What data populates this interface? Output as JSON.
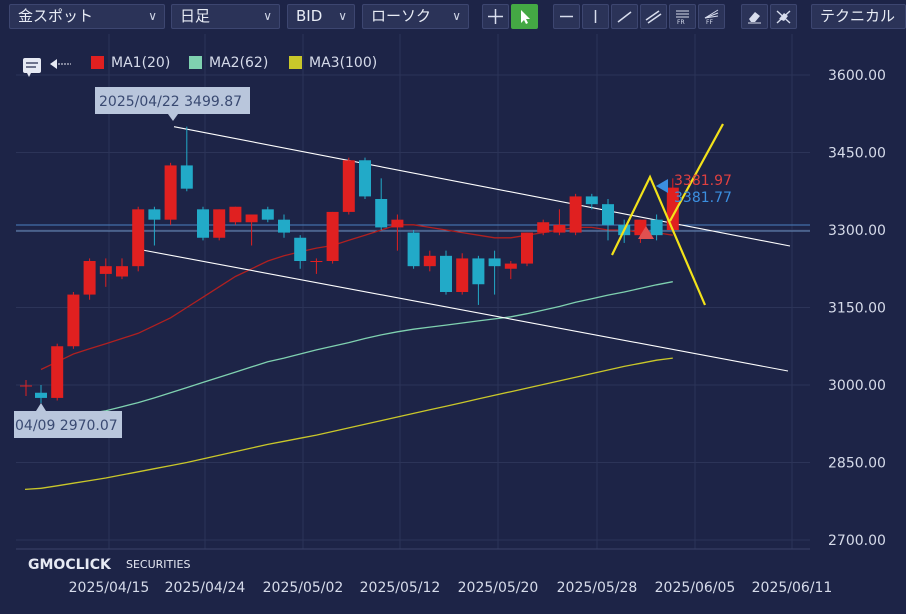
{
  "toolbar": {
    "symbol": "金スポット",
    "timeframe": "日足",
    "price_type": "BID",
    "chart_style": "ローソク",
    "technical_label": "テクニカル",
    "tools": [
      "crosshair-tool",
      "pointer-tool",
      "horizontal-line-tool",
      "vertical-line-tool",
      "trend-line-tool",
      "parallel-channel-tool",
      "fibonacci-retracement-tool",
      "fibonacci-fan-tool",
      "eraser-tool",
      "erase-all-tool"
    ],
    "fr_label": "FR",
    "ff_label": "FF"
  },
  "legend": {
    "items": [
      {
        "label": "MA1(20)",
        "color": "#e02020"
      },
      {
        "label": "MA2(62)",
        "color": "#7fd1b0"
      },
      {
        "label": "MA3(100)",
        "color": "#c9c72a"
      }
    ]
  },
  "brand": {
    "logo_text": "GMOCLICK",
    "logo_sub": "SECURITIES"
  },
  "annotations": {
    "high_label": "2025/04/22 3499.87",
    "low_label": "04/09 2970.07",
    "price_red": "3381.97",
    "price_blue": "3381.77"
  },
  "colors": {
    "background": "#1d2447",
    "up": "#e02020",
    "down": "#22aac8",
    "grid": "#2c3458",
    "axis_text": "#d6dbea"
  },
  "chart_data": {
    "type": "candlestick",
    "y_ticks": [
      "3600.00",
      "3450.00",
      "3300.00",
      "3150.00",
      "3000.00",
      "2850.00",
      "2700.00"
    ],
    "x_ticks": [
      "2025/04/15",
      "2025/04/24",
      "2025/05/02",
      "2025/05/12",
      "2025/05/20",
      "2025/05/28",
      "2025/06/05",
      "2025/06/11"
    ],
    "ylim": [
      2700,
      3600
    ],
    "candles": [
      [
        2985,
        3000,
        2965,
        2975
      ],
      [
        2975,
        3080,
        2970,
        3075
      ],
      [
        3075,
        3180,
        3070,
        3175
      ],
      [
        3175,
        3245,
        3165,
        3240
      ],
      [
        3215,
        3245,
        3190,
        3230
      ],
      [
        3210,
        3245,
        3205,
        3230
      ],
      [
        3230,
        3345,
        3220,
        3340
      ],
      [
        3340,
        3345,
        3270,
        3320
      ],
      [
        3320,
        3430,
        3310,
        3425
      ],
      [
        3425,
        3500,
        3375,
        3380
      ],
      [
        3340,
        3345,
        3280,
        3285
      ],
      [
        3285,
        3340,
        3280,
        3340
      ],
      [
        3315,
        3345,
        3310,
        3345
      ],
      [
        3315,
        3330,
        3270,
        3330
      ],
      [
        3340,
        3345,
        3315,
        3320
      ],
      [
        3320,
        3330,
        3285,
        3295
      ],
      [
        3285,
        3290,
        3225,
        3240
      ],
      [
        3240,
        3245,
        3215,
        3240
      ],
      [
        3240,
        3335,
        3235,
        3335
      ],
      [
        3335,
        3440,
        3330,
        3435
      ],
      [
        3435,
        3440,
        3360,
        3365
      ],
      [
        3360,
        3400,
        3300,
        3305
      ],
      [
        3305,
        3330,
        3260,
        3320
      ],
      [
        3295,
        3300,
        3225,
        3230
      ],
      [
        3230,
        3260,
        3220,
        3250
      ],
      [
        3250,
        3260,
        3175,
        3180
      ],
      [
        3180,
        3255,
        3175,
        3245
      ],
      [
        3245,
        3250,
        3155,
        3195
      ],
      [
        3245,
        3260,
        3175,
        3230
      ],
      [
        3225,
        3240,
        3205,
        3235
      ],
      [
        3235,
        3295,
        3230,
        3295
      ],
      [
        3295,
        3320,
        3290,
        3315
      ],
      [
        3295,
        3340,
        3290,
        3310
      ],
      [
        3295,
        3370,
        3290,
        3365
      ],
      [
        3365,
        3370,
        3340,
        3350
      ],
      [
        3350,
        3360,
        3280,
        3310
      ],
      [
        3310,
        3320,
        3275,
        3290
      ],
      [
        3290,
        3320,
        3275,
        3320
      ],
      [
        3320,
        3330,
        3280,
        3290
      ],
      [
        3300,
        3400,
        3295,
        3382
      ]
    ],
    "ma1": [
      3030,
      3045,
      3060,
      3070,
      3080,
      3090,
      3100,
      3115,
      3130,
      3150,
      3170,
      3190,
      3210,
      3225,
      3240,
      3250,
      3258,
      3265,
      3270,
      3280,
      3290,
      3300,
      3310,
      3310,
      3305,
      3300,
      3295,
      3290,
      3285,
      3285,
      3290,
      3295,
      3300,
      3305,
      3305,
      3300,
      3300,
      3295,
      3295,
      3290
    ],
    "ma2": [
      2930,
      2935,
      2940,
      2945,
      2950,
      2958,
      2966,
      2975,
      2985,
      2995,
      3005,
      3015,
      3025,
      3035,
      3045,
      3052,
      3060,
      3068,
      3075,
      3082,
      3090,
      3097,
      3103,
      3108,
      3112,
      3116,
      3120,
      3124,
      3128,
      3132,
      3138,
      3145,
      3152,
      3160,
      3167,
      3174,
      3180,
      3187,
      3194,
      3200
    ],
    "ma3": [
      2800,
      2805,
      2810,
      2815,
      2820,
      2826,
      2832,
      2838,
      2844,
      2850,
      2857,
      2864,
      2871,
      2878,
      2885,
      2891,
      2897,
      2903,
      2910,
      2917,
      2924,
      2931,
      2938,
      2945,
      2952,
      2959,
      2966,
      2973,
      2980,
      2987,
      2994,
      3001,
      3008,
      3015,
      3022,
      3029,
      3036,
      3042,
      3048,
      3052
    ]
  }
}
